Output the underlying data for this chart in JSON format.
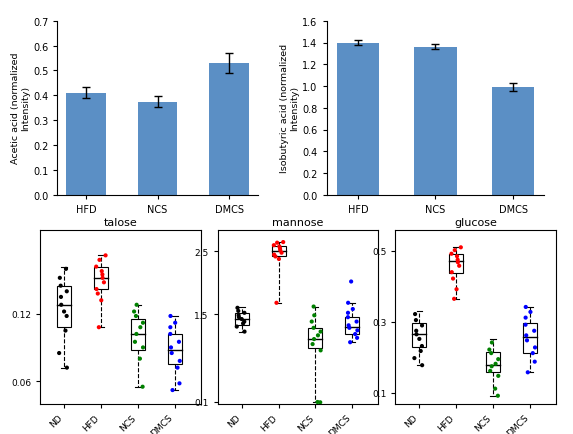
{
  "bar_chart_left": {
    "ylabel": "Acetic acid (normalized\nIntensity)",
    "categories": [
      "HFD",
      "NCS",
      "DMCS"
    ],
    "values": [
      0.41,
      0.375,
      0.53
    ],
    "errors": [
      0.022,
      0.022,
      0.04
    ],
    "ylim": [
      0.0,
      0.7
    ],
    "yticks": [
      0.0,
      0.1,
      0.2,
      0.3,
      0.4,
      0.5,
      0.6,
      0.7
    ],
    "bar_color": "#5b8fc5"
  },
  "bar_chart_right": {
    "ylabel": "Isobutyric acid (normalized\nIntensity)",
    "categories": [
      "HFD",
      "NCS",
      "DMCS"
    ],
    "values": [
      1.4,
      1.36,
      0.99
    ],
    "errors": [
      0.025,
      0.022,
      0.035
    ],
    "ylim": [
      0.0,
      1.6
    ],
    "yticks": [
      0.0,
      0.2,
      0.4,
      0.6,
      0.8,
      1.0,
      1.2,
      1.4,
      1.6
    ],
    "bar_color": "#5b8fc5"
  },
  "box_talose": {
    "title": "talose",
    "xlabel_groups": [
      "ND",
      "HFD",
      "NCS",
      "DMCS"
    ],
    "colors": [
      "black",
      "red",
      "green",
      "blue"
    ],
    "ylim_low": 0.04,
    "ylim_high": 0.195,
    "yticks": [
      0.06,
      0.12
    ],
    "ytick_labels": [
      "0.06",
      "0.12"
    ],
    "groups": {
      "ND": {
        "q1": 0.108,
        "median": 0.128,
        "q3": 0.145,
        "wlo": 0.072,
        "whi": 0.162,
        "pts": [
          0.072,
          0.085,
          0.105,
          0.118,
          0.122,
          0.128,
          0.135,
          0.14,
          0.145,
          0.152,
          0.16
        ]
      },
      "HFD": {
        "q1": 0.142,
        "median": 0.152,
        "q3": 0.162,
        "wlo": 0.108,
        "whi": 0.172,
        "pts": [
          0.108,
          0.132,
          0.138,
          0.142,
          0.148,
          0.152,
          0.155,
          0.158,
          0.162,
          0.168,
          0.172
        ]
      },
      "NCS": {
        "q1": 0.088,
        "median": 0.102,
        "q3": 0.115,
        "wlo": 0.055,
        "whi": 0.128,
        "pts": [
          0.055,
          0.08,
          0.09,
          0.095,
          0.102,
          0.108,
          0.112,
          0.118,
          0.122,
          0.128
        ]
      },
      "DMCS": {
        "q1": 0.075,
        "median": 0.088,
        "q3": 0.102,
        "wlo": 0.052,
        "whi": 0.118,
        "pts": [
          0.052,
          0.058,
          0.072,
          0.078,
          0.085,
          0.09,
          0.095,
          0.102,
          0.108,
          0.112,
          0.118
        ]
      }
    }
  },
  "box_mannose": {
    "title": "mannose",
    "xlabel_groups": [
      "ND",
      "HFD",
      "NCS",
      "DMCS"
    ],
    "colors": [
      "black",
      "red",
      "green",
      "blue"
    ],
    "ylim_low": 0.07,
    "ylim_high": 2.85,
    "yticks": [
      0.1,
      1.5,
      2.5
    ],
    "ytick_labels": [
      "0.1",
      "1.5",
      "2.5"
    ],
    "groups": {
      "ND": {
        "q1": 1.32,
        "median": 1.42,
        "q3": 1.52,
        "wlo": 1.22,
        "whi": 1.62,
        "pts": [
          1.22,
          1.3,
          1.35,
          1.38,
          1.42,
          1.45,
          1.48,
          1.52,
          1.55,
          1.6
        ]
      },
      "HFD": {
        "q1": 2.42,
        "median": 2.5,
        "q3": 2.58,
        "wlo": 1.68,
        "whi": 2.65,
        "pts": [
          1.68,
          2.38,
          2.42,
          2.45,
          2.48,
          2.52,
          2.55,
          2.58,
          2.6,
          2.64,
          2.65
        ]
      },
      "NCS": {
        "q1": 0.95,
        "median": 1.1,
        "q3": 1.28,
        "wlo": 0.09,
        "whi": 1.62,
        "pts": [
          0.09,
          0.095,
          0.92,
          1.02,
          1.1,
          1.16,
          1.22,
          1.28,
          1.38,
          1.48,
          1.62
        ]
      },
      "DMCS": {
        "q1": 1.18,
        "median": 1.3,
        "q3": 1.45,
        "wlo": 1.05,
        "whi": 1.68,
        "pts": [
          1.05,
          1.12,
          1.18,
          1.24,
          1.28,
          1.32,
          1.38,
          1.45,
          1.52,
          1.58,
          1.68,
          2.02
        ]
      }
    }
  },
  "box_glucose": {
    "title": "glucose",
    "xlabel_groups": [
      "ND",
      "HFD",
      "NCS",
      "DMCS"
    ],
    "colors": [
      "black",
      "red",
      "green",
      "blue"
    ],
    "ylim_low": 0.07,
    "ylim_high": 0.56,
    "yticks": [
      0.1,
      0.3,
      0.5
    ],
    "ytick_labels": [
      "0.1",
      "0.3",
      "0.5"
    ],
    "groups": {
      "ND": {
        "q1": 0.228,
        "median": 0.265,
        "q3": 0.298,
        "wlo": 0.178,
        "whi": 0.332,
        "pts": [
          0.178,
          0.198,
          0.218,
          0.232,
          0.252,
          0.265,
          0.275,
          0.29,
          0.305,
          0.322
        ]
      },
      "HFD": {
        "q1": 0.438,
        "median": 0.472,
        "q3": 0.492,
        "wlo": 0.365,
        "whi": 0.512,
        "pts": [
          0.365,
          0.392,
          0.422,
          0.44,
          0.458,
          0.468,
          0.475,
          0.485,
          0.492,
          0.502,
          0.51
        ]
      },
      "NCS": {
        "q1": 0.158,
        "median": 0.178,
        "q3": 0.215,
        "wlo": 0.092,
        "whi": 0.252,
        "pts": [
          0.092,
          0.112,
          0.148,
          0.162,
          0.175,
          0.182,
          0.195,
          0.212,
          0.222,
          0.242
        ]
      },
      "DMCS": {
        "q1": 0.212,
        "median": 0.258,
        "q3": 0.298,
        "wlo": 0.158,
        "whi": 0.342,
        "pts": [
          0.158,
          0.188,
          0.212,
          0.228,
          0.248,
          0.262,
          0.275,
          0.292,
          0.312,
          0.328,
          0.342
        ]
      }
    }
  }
}
